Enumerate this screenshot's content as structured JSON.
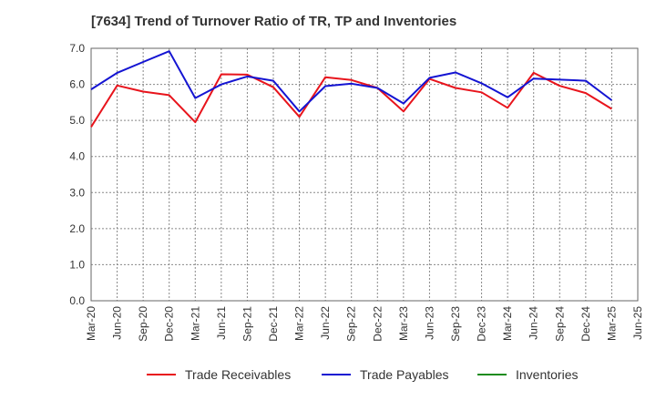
{
  "chart_data": {
    "type": "line",
    "title": "[7634]  Trend of Turnover Ratio of TR, TP and Inventories",
    "xlabel": "",
    "ylabel": "",
    "ylim": [
      0,
      7
    ],
    "y_ticks": [
      "0.0",
      "1.0",
      "2.0",
      "3.0",
      "4.0",
      "5.0",
      "6.0",
      "7.0"
    ],
    "grid": true,
    "legend_position": "bottom",
    "x": [
      "Mar-20",
      "Jun-20",
      "Sep-20",
      "Dec-20",
      "Mar-21",
      "Jun-21",
      "Sep-21",
      "Dec-21",
      "Mar-22",
      "Jun-22",
      "Sep-22",
      "Dec-22",
      "Mar-23",
      "Jun-23",
      "Sep-23",
      "Dec-23",
      "Mar-24",
      "Jun-24",
      "Sep-24",
      "Dec-24",
      "Mar-25",
      "Jun-25"
    ],
    "series": [
      {
        "name": "Trade Receivables",
        "color": "#e8141c",
        "values": [
          4.82,
          5.97,
          5.8,
          5.7,
          4.95,
          6.28,
          6.27,
          5.92,
          5.1,
          6.2,
          6.12,
          5.9,
          5.25,
          6.15,
          5.9,
          5.78,
          5.35,
          6.32,
          5.96,
          5.76,
          5.32,
          null
        ]
      },
      {
        "name": "Trade Payables",
        "color": "#1414d2",
        "values": [
          5.86,
          6.32,
          6.62,
          6.92,
          5.62,
          6.0,
          6.22,
          6.1,
          5.25,
          5.95,
          6.02,
          5.9,
          5.47,
          6.18,
          6.33,
          6.03,
          5.64,
          6.16,
          6.13,
          6.1,
          5.56,
          null
        ]
      },
      {
        "name": "Inventories",
        "color": "#1e8c1e",
        "values": [
          null,
          null,
          null,
          null,
          null,
          null,
          null,
          null,
          null,
          null,
          null,
          null,
          null,
          null,
          null,
          null,
          null,
          null,
          null,
          null,
          null,
          null
        ]
      }
    ]
  }
}
